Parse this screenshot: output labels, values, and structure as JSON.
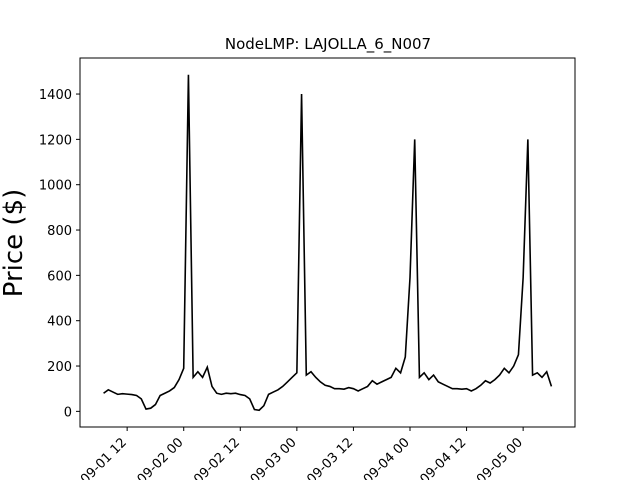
{
  "chart_data": {
    "type": "line",
    "title": "NodeLMP: LAJOLLA_6_N007",
    "y_label": "Price ($)",
    "x": [
      "09-01 07",
      "09-01 08",
      "09-01 09",
      "09-01 10",
      "09-01 11",
      "09-01 12",
      "09-01 13",
      "09-01 14",
      "09-01 15",
      "09-01 16",
      "09-01 17",
      "09-01 18",
      "09-01 19",
      "09-01 20",
      "09-01 21",
      "09-01 22",
      "09-01 23",
      "09-02 00",
      "09-02 01",
      "09-02 02",
      "09-02 03",
      "09-02 04",
      "09-02 05",
      "09-02 06",
      "09-02 07",
      "09-02 08",
      "09-02 09",
      "09-02 10",
      "09-02 11",
      "09-02 12",
      "09-02 13",
      "09-02 14",
      "09-02 15",
      "09-02 16",
      "09-02 17",
      "09-02 18",
      "09-02 19",
      "09-02 20",
      "09-02 21",
      "09-02 22",
      "09-02 23",
      "09-03 00",
      "09-03 01",
      "09-03 02",
      "09-03 03",
      "09-03 04",
      "09-03 05",
      "09-03 06",
      "09-03 07",
      "09-03 08",
      "09-03 09",
      "09-03 10",
      "09-03 11",
      "09-03 12",
      "09-03 13",
      "09-03 14",
      "09-03 15",
      "09-03 16",
      "09-03 17",
      "09-03 18",
      "09-03 19",
      "09-03 20",
      "09-03 21",
      "09-03 22",
      "09-03 23",
      "09-04 00",
      "09-04 01",
      "09-04 02",
      "09-04 03",
      "09-04 04",
      "09-04 05",
      "09-04 06",
      "09-04 07",
      "09-04 08",
      "09-04 09",
      "09-04 10",
      "09-04 11",
      "09-04 12",
      "09-04 13",
      "09-04 14",
      "09-04 15",
      "09-04 16",
      "09-04 17",
      "09-04 18",
      "09-04 19",
      "09-04 20",
      "09-04 21",
      "09-04 22",
      "09-04 23",
      "09-05 00",
      "09-05 01",
      "09-05 02",
      "09-05 03",
      "09-05 04",
      "09-05 05",
      "09-05 06"
    ],
    "series": [
      {
        "color": "#000000",
        "values": [
          80,
          95,
          85,
          75,
          78,
          76,
          74,
          70,
          55,
          10,
          14,
          30,
          70,
          80,
          90,
          105,
          140,
          190,
          1485,
          150,
          175,
          150,
          195,
          110,
          80,
          75,
          80,
          78,
          80,
          74,
          70,
          55,
          8,
          5,
          25,
          75,
          85,
          95,
          110,
          130,
          150,
          170,
          1400,
          160,
          175,
          150,
          130,
          115,
          110,
          100,
          100,
          98,
          105,
          100,
          90,
          100,
          110,
          135,
          120,
          130,
          140,
          150,
          190,
          170,
          240,
          590,
          1200,
          150,
          170,
          140,
          160,
          130,
          120,
          110,
          100,
          100,
          98,
          100,
          90,
          100,
          115,
          135,
          125,
          140,
          160,
          190,
          170,
          200,
          250,
          590,
          1200,
          160,
          170,
          150,
          175,
          110
        ]
      }
    ],
    "xlim": [
      "09-01 02",
      "09-05 11"
    ],
    "xticks": [
      "09-01 12",
      "09-02 00",
      "09-02 12",
      "09-03 00",
      "09-03 12",
      "09-04 00",
      "09-04 12",
      "09-05 00"
    ],
    "ylim": [
      -69,
      1559
    ],
    "yticks": [
      0,
      200,
      400,
      600,
      800,
      1000,
      1200,
      1400
    ]
  }
}
